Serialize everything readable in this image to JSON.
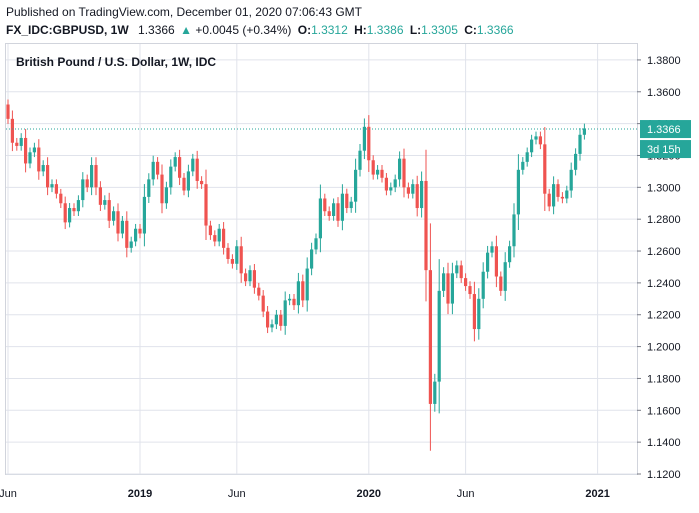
{
  "header": {
    "published": "Published on TradingView.com, December 01, 2020 07:06:43 GMT",
    "symbol": "FX_IDC:GBPUSD, 1W",
    "last": "1.3366",
    "change_arrow": "▲",
    "change": "+0.0045 (+0.34%)",
    "o_label": "O:",
    "o_value": "1.3312",
    "h_label": "H:",
    "h_value": "1.3386",
    "l_label": "L:",
    "l_value": "1.3305",
    "c_label": "C:",
    "c_value": "1.3366"
  },
  "colors": {
    "up": "#26a69a",
    "down": "#ef5350",
    "grid": "#e0e3eb",
    "text": "#131722"
  },
  "chart_data": {
    "type": "candlestick",
    "title": "British Pound / U.S. Dollar, 1W, IDC",
    "ylim": [
      1.12,
      1.39
    ],
    "y_ticks": [
      "1.1200",
      "1.1400",
      "1.1600",
      "1.1800",
      "1.2000",
      "1.2200",
      "1.2400",
      "1.2600",
      "1.2800",
      "1.3000",
      "1.3200",
      "1.3400",
      "1.3600",
      "1.3800"
    ],
    "x_ticks": [
      {
        "label": "Jun",
        "week": 0,
        "bold": false
      },
      {
        "label": "2019",
        "week": 30,
        "bold": true
      },
      {
        "label": "Jun",
        "week": 52,
        "bold": false
      },
      {
        "label": "2020",
        "week": 82,
        "bold": true
      },
      {
        "label": "Jun",
        "week": 104,
        "bold": false
      },
      {
        "label": "2021",
        "week": 134,
        "bold": true
      }
    ],
    "last_price_label": "1.3366",
    "countdown_label": "3d 15h",
    "last_price": 1.3366,
    "weeks": 130,
    "close": [
      1.343,
      1.328,
      1.326,
      1.331,
      1.315,
      1.322,
      1.325,
      1.31,
      1.314,
      1.3,
      1.302,
      1.296,
      1.29,
      1.278,
      1.287,
      1.285,
      1.292,
      1.305,
      1.3,
      1.314,
      1.3,
      1.289,
      1.292,
      1.279,
      1.285,
      1.271,
      1.279,
      1.262,
      1.266,
      1.274,
      1.271,
      1.294,
      1.305,
      1.316,
      1.308,
      1.29,
      1.3,
      1.313,
      1.319,
      1.306,
      1.298,
      1.31,
      1.318,
      1.304,
      1.302,
      1.276,
      1.27,
      1.266,
      1.274,
      1.262,
      1.255,
      1.252,
      1.263,
      1.246,
      1.241,
      1.248,
      1.237,
      1.232,
      1.222,
      1.212,
      1.214,
      1.22,
      1.213,
      1.229,
      1.23,
      1.226,
      1.241,
      1.229,
      1.249,
      1.261,
      1.268,
      1.293,
      1.285,
      1.282,
      1.29,
      1.279,
      1.296,
      1.287,
      1.291,
      1.311,
      1.323,
      1.338,
      1.317,
      1.308,
      1.311,
      1.306,
      1.298,
      1.3,
      1.305,
      1.318,
      1.3,
      1.296,
      1.302,
      1.287,
      1.304,
      1.248,
      1.164,
      1.178,
      1.235,
      1.246,
      1.227,
      1.246,
      1.251,
      1.243,
      1.238,
      1.233,
      1.211,
      1.23,
      1.247,
      1.259,
      1.263,
      1.244,
      1.235,
      1.253,
      1.263,
      1.283,
      1.311,
      1.316,
      1.322,
      1.33,
      1.332,
      1.327,
      1.296,
      1.288,
      1.302,
      1.294,
      1.293,
      1.298,
      1.311,
      1.321,
      1.333,
      1.337
    ]
  }
}
